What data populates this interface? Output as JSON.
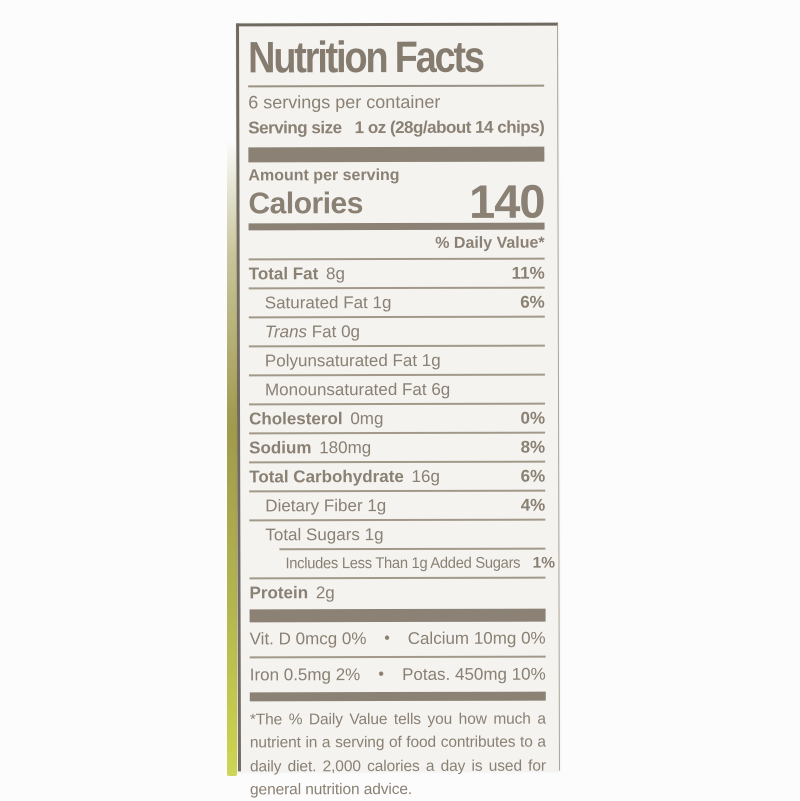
{
  "label": {
    "title": "Nutrition Facts",
    "servings_per_container": "6 servings per container",
    "serving_size_label": "Serving size",
    "serving_size_value": "1 oz (28g/about 14 chips)",
    "amount_per_serving": "Amount per serving",
    "calories_label": "Calories",
    "calories_value": "140",
    "daily_value_header": "% Daily Value*",
    "nutrients": [
      {
        "name": "Total Fat",
        "amount": "8g",
        "dv": "11%"
      },
      {
        "name": "Saturated Fat",
        "amount": "1g",
        "dv": "6%"
      },
      {
        "name_italic": "Trans",
        "name": "Fat",
        "amount": "0g"
      },
      {
        "name": "Polyunsaturated Fat",
        "amount": "1g"
      },
      {
        "name": "Monounsaturated Fat",
        "amount": "6g"
      },
      {
        "name": "Cholesterol",
        "amount": "0mg",
        "dv": "0%"
      },
      {
        "name": "Sodium",
        "amount": "180mg",
        "dv": "8%"
      },
      {
        "name": "Total Carbohydrate",
        "amount": "16g",
        "dv": "6%"
      },
      {
        "name": "Dietary Fiber",
        "amount": "1g",
        "dv": "4%"
      },
      {
        "name": "Total Sugars",
        "amount": "1g"
      },
      {
        "name": "Includes Less Than 1g Added Sugars",
        "dv": "1%"
      },
      {
        "name": "Protein",
        "amount": "2g"
      }
    ],
    "bullet": "•",
    "vitamins": [
      {
        "left": "Vit. D 0mcg 0%",
        "right": "Calcium 10mg 0%"
      },
      {
        "left": "Iron 0.5mg 2%",
        "right": "Potas. 450mg 10%"
      }
    ],
    "footnote": "*The % Daily Value tells you how much a nutrient in a serving of food contributes to a daily diet. 2,000 calories a day is used for general nutrition advice."
  },
  "colors": {
    "ink": "#8a8073",
    "label_background": "#f4f3f0",
    "page_background": "#fcfcfc",
    "package_edge_olive": "#c3c94d",
    "hairline": "#a2998b"
  }
}
